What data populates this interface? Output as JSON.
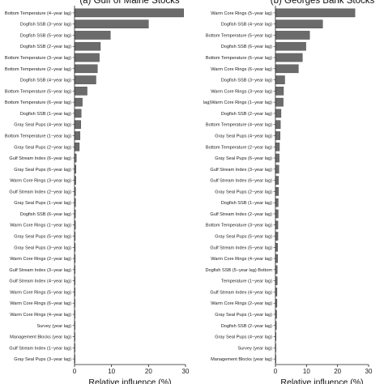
{
  "chart_data": [
    {
      "type": "bar",
      "orientation": "horizontal",
      "title": "(a) Gulf of Maine Stocks",
      "xlabel": "Relative influence (%)",
      "xlim": [
        0,
        30
      ],
      "xticks": [
        "0",
        "10",
        "20",
        "30"
      ],
      "bar_color": "#6b6b6b",
      "categories": [
        "Bottom Temperature (4−year lag)",
        "Dogfish SSB (3−year lag)",
        "Dogfish SSB (5−year lag)",
        "Dogfish SSB (2−year lag)",
        "Bottom Temperature (3−year lag)",
        "Bottom Temperature (2−year lag)",
        "Dogfish SSB (4−year lag)",
        "Bottom Temperature (5−year lag)",
        "Bottom Temperature (6−year lag)",
        "Dogfish SSB (1−year lag)",
        "Gray Seal Pups (4−year lag)",
        "Bottom Temperature (1−year lag)",
        "Gray Seal Pups (2−year lag)",
        "Gulf Stream Index (6−year lag)",
        "Gray Seal Pups (6−year lag)",
        "Warm Core Rings (3−year lag)",
        "Gulf Stream Index (2−year lag)",
        "Gray Seal Pups (1−year lag)",
        "Dogfish SSB (6−year lag)",
        "Warm Core Rings (1−year lag)",
        "Gray Seal Pups (5−year lag)",
        "Gray Seal Pups (3−year lag)",
        "Warm Core Rings (2−year lag)",
        "Gulf Stream Index (3−year lag)",
        "Gulf Stream Index (4−year lag)",
        "Warm Core Rings (5−year lag)",
        "Warm Core Rings (6−year lag)",
        "Warm Core Rings (4−year lag)",
        "Survey (year lag)",
        "Management Blocks (year lag)",
        "Gulf Stream Index (1−year lag)",
        "Gray Seal Pups (3−year lag)"
      ],
      "values": [
        29.5,
        20.0,
        9.7,
        7.0,
        6.7,
        6.2,
        5.8,
        3.4,
        2.1,
        1.8,
        1.7,
        1.5,
        1.3,
        0.5,
        0.4,
        0.35,
        0.3,
        0.3,
        0.25,
        0.25,
        0.2,
        0.2,
        0.2,
        0.15,
        0.15,
        0.15,
        0.1,
        0.1,
        0.05,
        0.05,
        0.05,
        0.05
      ]
    },
    {
      "type": "bar",
      "orientation": "horizontal",
      "title": "(b) Georges Bank Stocks",
      "xlabel": "Relative influence (%)",
      "xlim": [
        0,
        30
      ],
      "xticks": [
        "0",
        "10",
        "20",
        "30"
      ],
      "bar_color": "#6b6b6b",
      "categories": [
        "Warm Core Rings (5−year lag)",
        "Dogfish SSB (4−year lag)",
        "Bottom Temperature (5−year lag)",
        "Dogfish SSB (6−year lag)",
        "Bottom Temperature (6−year lag)",
        "Warm Core Rings (6−year lag)",
        "Dogfish SSB (3−year lag)",
        "Warm Core Rings (3−year lag)",
        "lag)Warm Core Rings (1−year lag)",
        "Dogfish SSB (2−year lag)",
        "Bottom Temperature (4−year lag)",
        "Gray Seal Pups (4−year lag)",
        "Bottom Temperature (2−year lag)",
        "Gray Seal Pups (6−year lag)",
        "Gulf Stream Index (3−year lag)",
        "Gulf Stream Index (6−year lag)",
        "Gray Seal Pups (2−year lag)",
        "Dogfish SSB (1−year lag)",
        "Gulf Stream Index (2−year lag)",
        "Bottom Temperature (3−year lag)",
        "Gray Seal Pups (5−year lag)",
        "Gulf Stream Index (5−year lag)",
        "Warm Core Rings (4−year lag)",
        "Dogfish SSB (5−year lag) Bottom",
        "Temperature (1−year lag)",
        "Gulf Stream Index (4−year lag)",
        "Warm Core Rings (2−year lag)",
        "Gray Seal Pups (1−year lag)",
        "Dogfish SSB (2−year lag)",
        "Gray Seal Pups (4−year lag)",
        "Survey (year lag)",
        "Management Blocks (year lag)"
      ],
      "values": [
        25.6,
        15.2,
        11.0,
        9.8,
        8.7,
        7.4,
        3.0,
        2.6,
        2.5,
        1.8,
        1.6,
        1.5,
        1.3,
        1.2,
        1.1,
        1.0,
        1.0,
        0.9,
        0.9,
        0.8,
        0.8,
        0.7,
        0.7,
        0.6,
        0.6,
        0.5,
        0.5,
        0.4,
        0.3,
        0.2,
        0.1,
        0.05
      ]
    }
  ]
}
